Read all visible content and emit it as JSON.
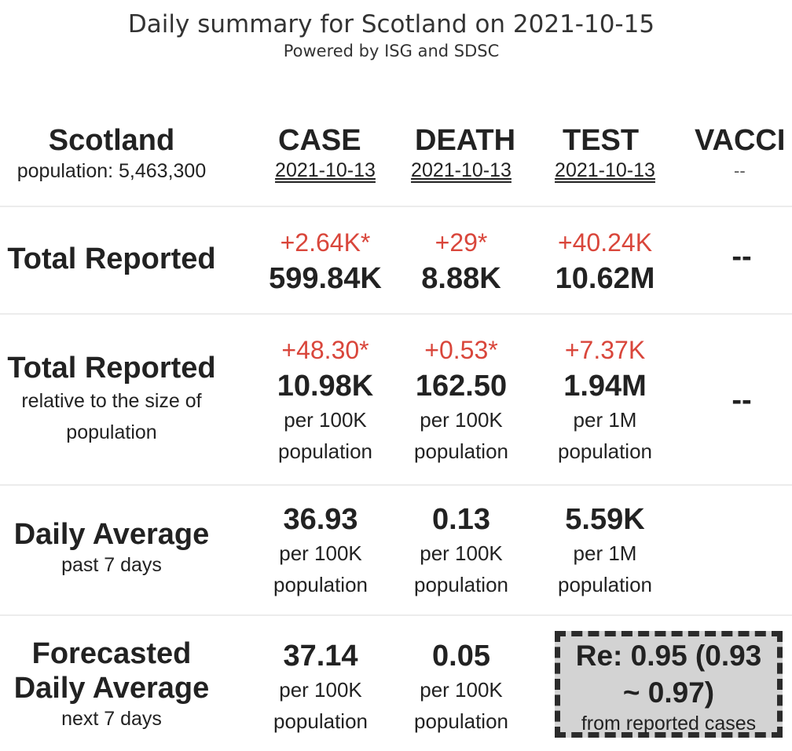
{
  "header": {
    "title": "Daily summary for Scotland on 2021-10-15",
    "subtitle": "Powered by ISG and SDSC"
  },
  "columns": {
    "region_name": "Scotland",
    "region_population": "population: 5,463,300",
    "case_label": "CASE",
    "case_date": "2021-10-13",
    "death_label": "DEATH",
    "death_date": "2021-10-13",
    "test_label": "TEST",
    "test_date": "2021-10-13",
    "vacc_label": "VACCI",
    "vacc_date": "--"
  },
  "total_reported": {
    "title": "Total Reported",
    "case_delta": "+2.64K*",
    "case_value": "599.84K",
    "death_delta": "+29*",
    "death_value": "8.88K",
    "test_delta": "+40.24K",
    "test_value": "10.62M",
    "vacc_value": "--"
  },
  "relative": {
    "title": "Total Reported",
    "sub1": "relative to the size of",
    "sub2": "population",
    "case_delta": "+48.30*",
    "case_value": "10.98K",
    "case_unit1": "per 100K",
    "case_unit2": "population",
    "death_delta": "+0.53*",
    "death_value": "162.50",
    "death_unit1": "per 100K",
    "death_unit2": "population",
    "test_delta": "+7.37K",
    "test_value": "1.94M",
    "test_unit1": "per 1M",
    "test_unit2": "population",
    "vacc_value": "--"
  },
  "daily_average": {
    "title": "Daily Average",
    "sub": "past 7 days",
    "case_value": "36.93",
    "case_unit1": "per 100K",
    "case_unit2": "population",
    "death_value": "0.13",
    "death_unit1": "per 100K",
    "death_unit2": "population",
    "test_value": "5.59K",
    "test_unit1": "per 1M",
    "test_unit2": "population"
  },
  "forecast": {
    "title1": "Forecasted",
    "title2": "Daily Average",
    "sub": "next 7 days",
    "case_value": "37.14",
    "case_unit1": "per 100K",
    "case_unit2": "population",
    "death_value": "0.05",
    "death_unit1": "per 100K",
    "death_unit2": "population",
    "re_line1": "Re: 0.95 (0.93",
    "re_line2": "~ 0.97)",
    "re_sub": "from reported cases"
  },
  "colors": {
    "delta_red": "#d9463b",
    "box_gray": "#d3d3d3",
    "text_dark": "#222222"
  }
}
